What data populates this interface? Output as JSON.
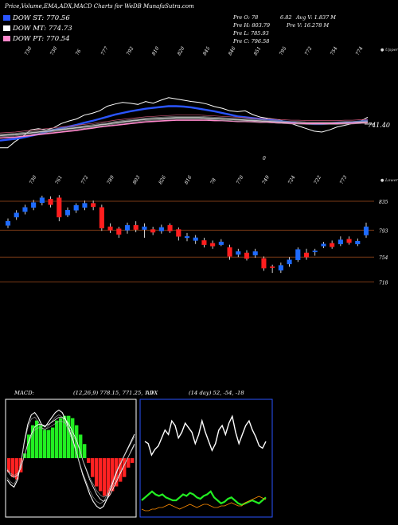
{
  "header": {
    "title": "Price,Volume,EMA,ADX,MACD Charts for WeDB MunafaSutra.com"
  },
  "moving_averages": [
    {
      "label": "DOW ST:",
      "value": "770.56",
      "color": "#2a55ff"
    },
    {
      "label": "DOW MT:",
      "value": "774.73",
      "color": "#ffffff"
    },
    {
      "label": "DOW PT:",
      "value": "770.54",
      "color": "#ff88cc"
    }
  ],
  "ohlc": {
    "open": "Pre  O: 78",
    "high": "Pre  H: 803.79",
    "low": "Pre  L: 785.93",
    "close": "Pre  C: 796.58",
    "extra": "6.82",
    "avg_vol": "Avg V: 1.837 M",
    "prev_vol": "Pre  V: 16.278  M"
  },
  "top_labels": {
    "upper_right": "● Upper",
    "lower_right": "● Lower",
    "last_price": "741.40",
    "zero": "0"
  },
  "chart_data": [
    {
      "type": "line",
      "name": "price-ema-panel",
      "ema_value_label": "741.40",
      "top_tick_labels": [
        "730",
        "730",
        "76",
        "777",
        "792",
        "810",
        "820",
        "845",
        "846",
        "851",
        "795",
        "772",
        "754",
        "774"
      ],
      "bottom_tick_labels": [
        "730",
        "761",
        "772",
        "789",
        "803",
        "826",
        "816",
        "78",
        "770",
        "749",
        "724",
        "722",
        "773"
      ],
      "series": [
        {
          "name": "price",
          "color": "#ffffff",
          "values": [
            703,
            703,
            718,
            730,
            745,
            748,
            745,
            750,
            760,
            766,
            771,
            780,
            784,
            790,
            801,
            806,
            810,
            808,
            805,
            812,
            808,
            815,
            821,
            818,
            815,
            812,
            810,
            806,
            800,
            796,
            790,
            788,
            790,
            781,
            775,
            772,
            770,
            766,
            760,
            754,
            748,
            742,
            740,
            745,
            752,
            756,
            760,
            765,
            775
          ]
        },
        {
          "name": "ema-short",
          "color": "#2a55ff",
          "values": [
            720,
            722,
            724,
            727,
            731,
            735,
            740,
            745,
            749,
            753,
            757,
            762,
            766,
            771,
            776,
            781,
            785,
            789,
            792,
            795,
            797,
            799,
            801,
            801,
            800,
            798,
            795,
            792,
            789,
            785,
            781,
            777,
            775,
            773,
            771,
            769,
            767,
            765,
            763,
            761,
            760,
            759,
            759,
            760,
            761,
            762,
            763,
            765,
            767
          ]
        },
        {
          "name": "ema-mid",
          "color": "#c0c0c0",
          "values": [
            732,
            733,
            734,
            736,
            738,
            740,
            742,
            744,
            746,
            748,
            750,
            752,
            754,
            757,
            759,
            762,
            764,
            766,
            768,
            770,
            771,
            772,
            773,
            774,
            774,
            774,
            774,
            773,
            772,
            771,
            770,
            769,
            768,
            767,
            766,
            765,
            764,
            763,
            762,
            762,
            761,
            761,
            761,
            761,
            761,
            762,
            762,
            763,
            764
          ]
        },
        {
          "name": "ema-long",
          "color": "#ff88cc",
          "values": [
            726,
            727,
            728,
            730,
            732,
            734,
            736,
            738,
            740,
            742,
            744,
            747,
            749,
            752,
            754,
            756,
            758,
            760,
            762,
            764,
            765,
            766,
            767,
            768,
            768,
            768,
            768,
            768,
            767,
            767,
            766,
            765,
            765,
            764,
            763,
            763,
            762,
            761,
            761,
            760,
            760,
            760,
            760,
            760,
            760,
            760,
            761,
            761,
            762
          ]
        }
      ]
    },
    {
      "type": "candlestick",
      "name": "price-candles",
      "y_labels": [
        "835",
        "793",
        "754",
        "718"
      ],
      "y_values": [
        835,
        793,
        754,
        718
      ],
      "ylim": [
        700,
        850
      ],
      "candles": [
        {
          "o": 800,
          "c": 806,
          "h": 810,
          "l": 796
        },
        {
          "o": 812,
          "c": 818,
          "h": 822,
          "l": 808
        },
        {
          "o": 820,
          "c": 826,
          "h": 830,
          "l": 816
        },
        {
          "o": 826,
          "c": 833,
          "h": 837,
          "l": 822
        },
        {
          "o": 833,
          "c": 840,
          "h": 843,
          "l": 829
        },
        {
          "o": 838,
          "c": 830,
          "h": 842,
          "l": 826
        },
        {
          "o": 840,
          "c": 812,
          "h": 844,
          "l": 806
        },
        {
          "o": 815,
          "c": 822,
          "h": 826,
          "l": 812
        },
        {
          "o": 822,
          "c": 829,
          "h": 832,
          "l": 818
        },
        {
          "o": 826,
          "c": 832,
          "h": 836,
          "l": 822
        },
        {
          "o": 832,
          "c": 827,
          "h": 836,
          "l": 822
        },
        {
          "o": 826,
          "c": 796,
          "h": 830,
          "l": 792
        },
        {
          "o": 798,
          "c": 793,
          "h": 803,
          "l": 789
        },
        {
          "o": 795,
          "c": 787,
          "h": 798,
          "l": 782
        },
        {
          "o": 793,
          "c": 800,
          "h": 804,
          "l": 788
        },
        {
          "o": 800,
          "c": 794,
          "h": 806,
          "l": 790
        },
        {
          "o": 794,
          "c": 798,
          "h": 803,
          "l": 782
        },
        {
          "o": 794,
          "c": 790,
          "h": 798,
          "l": 786
        },
        {
          "o": 792,
          "c": 797,
          "h": 801,
          "l": 788
        },
        {
          "o": 800,
          "c": 792,
          "h": 803,
          "l": 789
        },
        {
          "o": 794,
          "c": 784,
          "h": 797,
          "l": 778
        },
        {
          "o": 782,
          "c": 784,
          "h": 789,
          "l": 777
        },
        {
          "o": 778,
          "c": 782,
          "h": 786,
          "l": 773
        },
        {
          "o": 778,
          "c": 772,
          "h": 782,
          "l": 768
        },
        {
          "o": 774,
          "c": 770,
          "h": 778,
          "l": 766
        },
        {
          "o": 772,
          "c": 776,
          "h": 780,
          "l": 770
        },
        {
          "o": 768,
          "c": 755,
          "h": 772,
          "l": 750
        },
        {
          "o": 758,
          "c": 762,
          "h": 766,
          "l": 754
        },
        {
          "o": 760,
          "c": 752,
          "h": 764,
          "l": 749
        },
        {
          "o": 757,
          "c": 762,
          "h": 766,
          "l": 753
        },
        {
          "o": 752,
          "c": 738,
          "h": 755,
          "l": 734
        },
        {
          "o": 740,
          "c": 739,
          "h": 743,
          "l": 731
        },
        {
          "o": 735,
          "c": 742,
          "h": 746,
          "l": 731
        },
        {
          "o": 744,
          "c": 750,
          "h": 754,
          "l": 740
        },
        {
          "o": 750,
          "c": 765,
          "h": 768,
          "l": 747
        },
        {
          "o": 760,
          "c": 754,
          "h": 766,
          "l": 750
        },
        {
          "o": 762,
          "c": 763,
          "h": 766,
          "l": 756
        },
        {
          "o": 770,
          "c": 773,
          "h": 776,
          "l": 767
        },
        {
          "o": 774,
          "c": 769,
          "h": 778,
          "l": 766
        },
        {
          "o": 773,
          "c": 779,
          "h": 784,
          "l": 770
        },
        {
          "o": 780,
          "c": 775,
          "h": 784,
          "l": 772
        },
        {
          "o": 773,
          "c": 777,
          "h": 781,
          "l": 770
        },
        {
          "o": 786,
          "c": 798,
          "h": 804,
          "l": 782
        }
      ]
    },
    {
      "type": "line",
      "name": "macd",
      "title": "MACD:",
      "params": "(12,26,9) 778.15, 771.25, 1.9",
      "series": [
        {
          "name": "macd-line",
          "color": "#ffffff",
          "values": [
            -18,
            -22,
            -24,
            -18,
            -4,
            14,
            28,
            36,
            38,
            34,
            28,
            26,
            30,
            34,
            38,
            40,
            38,
            32,
            24,
            16,
            6,
            -4,
            -14,
            -22,
            -30,
            -36,
            -40,
            -42,
            -40,
            -34,
            -26,
            -18,
            -10,
            -4,
            2,
            8,
            14,
            20
          ]
        },
        {
          "name": "signal-line",
          "color": "#ffffff",
          "values": [
            -10,
            -14,
            -16,
            -14,
            -8,
            2,
            12,
            20,
            26,
            28,
            28,
            27,
            28,
            30,
            32,
            34,
            34,
            32,
            28,
            22,
            16,
            8,
            -2,
            -10,
            -18,
            -24,
            -30,
            -34,
            -36,
            -34,
            -30,
            -24,
            -18,
            -12,
            -6,
            0,
            6,
            12
          ]
        },
        {
          "name": "histogram",
          "color": "#ff2222",
          "values": [
            -6,
            -8,
            -9,
            -6,
            2,
            10,
            14,
            16,
            14,
            12,
            12,
            13,
            16,
            17,
            18,
            18,
            17,
            14,
            10,
            6,
            -2,
            -8,
            -12,
            -14,
            -16,
            -16,
            -14,
            -12,
            -10,
            -8,
            -4,
            -2
          ]
        }
      ]
    },
    {
      "type": "line",
      "name": "adx",
      "title": "ADX",
      "params": "(14 day) 52, -54, -18",
      "series": [
        {
          "name": "adx-white",
          "color": "#ffffff",
          "values": [
            52,
            50,
            40,
            45,
            48,
            55,
            62,
            58,
            70,
            66,
            55,
            60,
            68,
            64,
            60,
            50,
            58,
            70,
            60,
            52,
            44,
            50,
            62,
            66,
            58,
            68,
            74,
            60,
            50,
            58,
            66,
            70,
            62,
            56,
            48,
            46,
            52
          ]
        },
        {
          "name": "plus-di",
          "color": "#22ee22",
          "values": [
            8,
            10,
            12,
            14,
            12,
            11,
            12,
            10,
            9,
            8,
            8,
            10,
            12,
            11,
            13,
            12,
            10,
            9,
            11,
            12,
            14,
            10,
            8,
            6,
            7,
            9,
            10,
            8,
            6,
            5,
            6,
            7,
            8,
            7,
            6,
            8,
            10
          ]
        },
        {
          "name": "minus-di",
          "color": "#ff8c00",
          "values": [
            4,
            3,
            3,
            4,
            4,
            5,
            5,
            6,
            7,
            6,
            5,
            4,
            5,
            6,
            7,
            6,
            5,
            6,
            7,
            7,
            6,
            5,
            5,
            6,
            6,
            7,
            8,
            7,
            6,
            6,
            8,
            9,
            10,
            11,
            12,
            11,
            10
          ]
        }
      ]
    }
  ]
}
